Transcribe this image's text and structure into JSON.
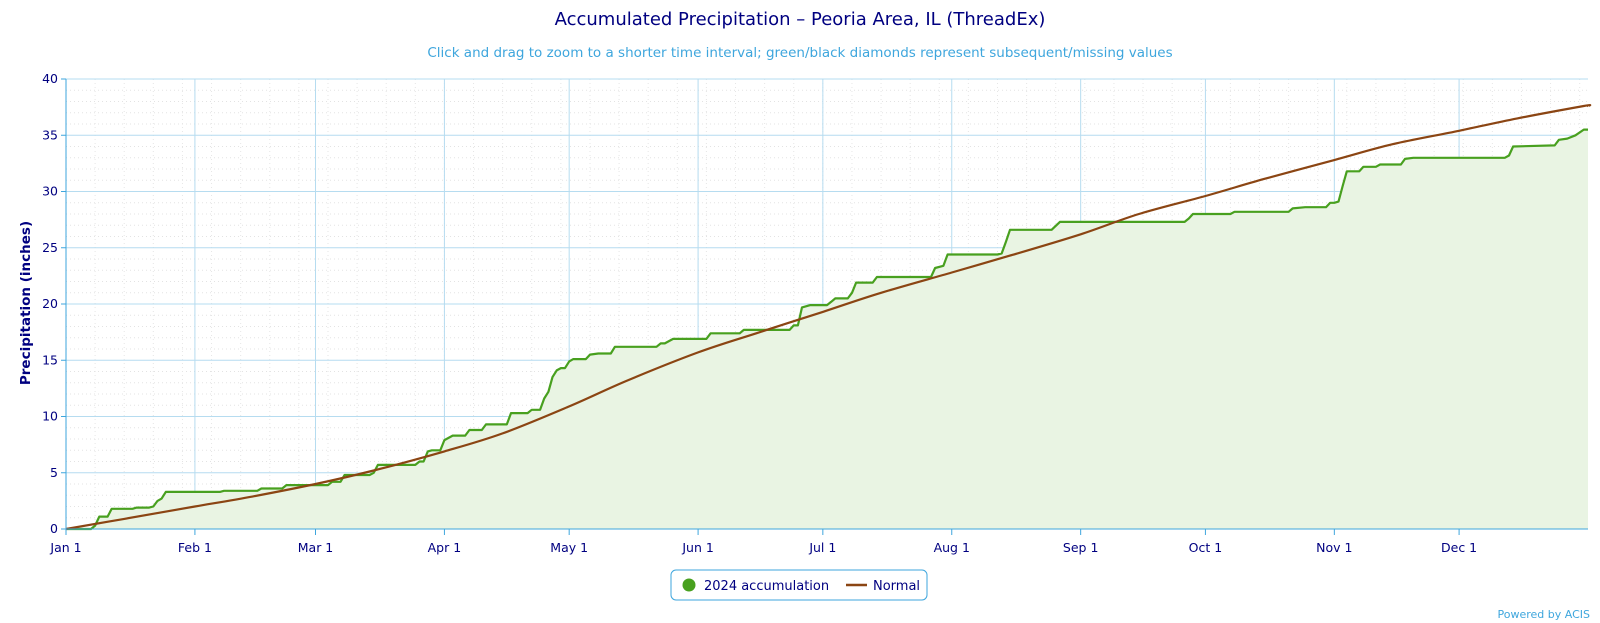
{
  "chart_data": {
    "type": "area",
    "title": "Accumulated Precipitation – Peoria Area, IL (ThreadEx)",
    "subtitle": "Click and drag to zoom to a shorter time interval; green/black diamonds represent subsequent/missing values",
    "ylabel": "Precipitation (inches)",
    "ylim": [
      0,
      40
    ],
    "yticks": [
      "0",
      "5",
      "10",
      "15",
      "20",
      "25",
      "30",
      "35",
      "40"
    ],
    "xlim": [
      "2024-01-01",
      "2024-12-31"
    ],
    "xticks": [
      {
        "date": "2024-01-01",
        "label": "Jan 1"
      },
      {
        "date": "2024-02-01",
        "label": "Feb 1"
      },
      {
        "date": "2024-03-01",
        "label": "Mar 1"
      },
      {
        "date": "2024-04-01",
        "label": "Apr 1"
      },
      {
        "date": "2024-05-01",
        "label": "May 1"
      },
      {
        "date": "2024-06-01",
        "label": "Jun 1"
      },
      {
        "date": "2024-07-01",
        "label": "Jul 1"
      },
      {
        "date": "2024-08-01",
        "label": "Aug 1"
      },
      {
        "date": "2024-09-01",
        "label": "Sep 1"
      },
      {
        "date": "2024-10-01",
        "label": "Oct 1"
      },
      {
        "date": "2024-11-01",
        "label": "Nov 1"
      },
      {
        "date": "2024-12-01",
        "label": "Dec 1"
      }
    ],
    "grid": true,
    "legend_position": "bottom-center",
    "series": [
      {
        "name": "2024 accumulation",
        "color": "#48a01f",
        "fill": "#e9f4e3",
        "points": [
          [
            "2024-01-01",
            0.0
          ],
          [
            "2024-01-07",
            0.0
          ],
          [
            "2024-01-08",
            0.3
          ],
          [
            "2024-01-09",
            1.1
          ],
          [
            "2024-01-11",
            1.1
          ],
          [
            "2024-01-12",
            1.8
          ],
          [
            "2024-01-17",
            1.8
          ],
          [
            "2024-01-18",
            1.9
          ],
          [
            "2024-01-21",
            1.9
          ],
          [
            "2024-01-22",
            2.0
          ],
          [
            "2024-01-23",
            2.5
          ],
          [
            "2024-01-24",
            2.7
          ],
          [
            "2024-01-25",
            3.3
          ],
          [
            "2024-02-07",
            3.3
          ],
          [
            "2024-02-08",
            3.4
          ],
          [
            "2024-02-16",
            3.4
          ],
          [
            "2024-02-17",
            3.6
          ],
          [
            "2024-02-22",
            3.6
          ],
          [
            "2024-02-23",
            3.9
          ],
          [
            "2024-03-04",
            3.9
          ],
          [
            "2024-03-05",
            4.2
          ],
          [
            "2024-03-07",
            4.2
          ],
          [
            "2024-03-08",
            4.8
          ],
          [
            "2024-03-14",
            4.8
          ],
          [
            "2024-03-15",
            5.0
          ],
          [
            "2024-03-16",
            5.7
          ],
          [
            "2024-03-25",
            5.7
          ],
          [
            "2024-03-26",
            6.0
          ],
          [
            "2024-03-27",
            6.0
          ],
          [
            "2024-03-28",
            6.9
          ],
          [
            "2024-03-29",
            7.0
          ],
          [
            "2024-03-31",
            7.0
          ],
          [
            "2024-04-01",
            7.9
          ],
          [
            "2024-04-03",
            8.3
          ],
          [
            "2024-04-06",
            8.3
          ],
          [
            "2024-04-07",
            8.8
          ],
          [
            "2024-04-10",
            8.8
          ],
          [
            "2024-04-11",
            9.3
          ],
          [
            "2024-04-16",
            9.3
          ],
          [
            "2024-04-17",
            10.3
          ],
          [
            "2024-04-21",
            10.3
          ],
          [
            "2024-04-22",
            10.6
          ],
          [
            "2024-04-24",
            10.6
          ],
          [
            "2024-04-25",
            11.6
          ],
          [
            "2024-04-26",
            12.2
          ],
          [
            "2024-04-27",
            13.5
          ],
          [
            "2024-04-28",
            14.1
          ],
          [
            "2024-04-29",
            14.3
          ],
          [
            "2024-04-30",
            14.3
          ],
          [
            "2024-05-01",
            14.9
          ],
          [
            "2024-05-02",
            15.1
          ],
          [
            "2024-05-05",
            15.1
          ],
          [
            "2024-05-06",
            15.5
          ],
          [
            "2024-05-08",
            15.6
          ],
          [
            "2024-05-11",
            15.6
          ],
          [
            "2024-05-12",
            16.2
          ],
          [
            "2024-05-22",
            16.2
          ],
          [
            "2024-05-23",
            16.5
          ],
          [
            "2024-05-24",
            16.5
          ],
          [
            "2024-05-26",
            16.9
          ],
          [
            "2024-06-03",
            16.9
          ],
          [
            "2024-06-04",
            17.4
          ],
          [
            "2024-06-11",
            17.4
          ],
          [
            "2024-06-12",
            17.7
          ],
          [
            "2024-06-23",
            17.7
          ],
          [
            "2024-06-24",
            18.1
          ],
          [
            "2024-06-25",
            18.1
          ],
          [
            "2024-06-26",
            19.7
          ],
          [
            "2024-06-28",
            19.9
          ],
          [
            "2024-07-02",
            19.9
          ],
          [
            "2024-07-03",
            20.2
          ],
          [
            "2024-07-04",
            20.5
          ],
          [
            "2024-07-07",
            20.5
          ],
          [
            "2024-07-08",
            21.0
          ],
          [
            "2024-07-09",
            21.9
          ],
          [
            "2024-07-13",
            21.9
          ],
          [
            "2024-07-14",
            22.4
          ],
          [
            "2024-07-27",
            22.4
          ],
          [
            "2024-07-28",
            23.2
          ],
          [
            "2024-07-30",
            23.4
          ],
          [
            "2024-07-31",
            24.4
          ],
          [
            "2024-08-12",
            24.4
          ],
          [
            "2024-08-13",
            24.5
          ],
          [
            "2024-08-14",
            25.5
          ],
          [
            "2024-08-15",
            26.6
          ],
          [
            "2024-08-25",
            26.6
          ],
          [
            "2024-08-27",
            27.3
          ],
          [
            "2024-09-26",
            27.3
          ],
          [
            "2024-09-27",
            27.6
          ],
          [
            "2024-09-28",
            28.0
          ],
          [
            "2024-10-07",
            28.0
          ],
          [
            "2024-10-08",
            28.2
          ],
          [
            "2024-10-21",
            28.2
          ],
          [
            "2024-10-22",
            28.5
          ],
          [
            "2024-10-25",
            28.6
          ],
          [
            "2024-10-30",
            28.6
          ],
          [
            "2024-10-31",
            29.0
          ],
          [
            "2024-11-01",
            29.0
          ],
          [
            "2024-11-02",
            29.1
          ],
          [
            "2024-11-03",
            30.5
          ],
          [
            "2024-11-04",
            31.8
          ],
          [
            "2024-11-07",
            31.8
          ],
          [
            "2024-11-08",
            32.2
          ],
          [
            "2024-11-11",
            32.2
          ],
          [
            "2024-11-12",
            32.4
          ],
          [
            "2024-11-17",
            32.4
          ],
          [
            "2024-11-18",
            32.9
          ],
          [
            "2024-11-20",
            33.0
          ],
          [
            "2024-12-12",
            33.0
          ],
          [
            "2024-12-13",
            33.2
          ],
          [
            "2024-12-14",
            34.0
          ],
          [
            "2024-12-24",
            34.1
          ],
          [
            "2024-12-25",
            34.6
          ],
          [
            "2024-12-27",
            34.7
          ],
          [
            "2024-12-29",
            35.0
          ],
          [
            "2024-12-31",
            35.5
          ]
        ]
      },
      {
        "name": "Normal",
        "color": "#8b4513",
        "points": [
          [
            "2024-01-01",
            0.0
          ],
          [
            "2024-01-15",
            0.9
          ],
          [
            "2024-02-01",
            2.0
          ],
          [
            "2024-02-15",
            2.9
          ],
          [
            "2024-03-01",
            4.0
          ],
          [
            "2024-03-15",
            5.2
          ],
          [
            "2024-04-01",
            6.9
          ],
          [
            "2024-04-15",
            8.5
          ],
          [
            "2024-05-01",
            10.9
          ],
          [
            "2024-05-15",
            13.2
          ],
          [
            "2024-06-01",
            15.7
          ],
          [
            "2024-06-15",
            17.4
          ],
          [
            "2024-07-01",
            19.3
          ],
          [
            "2024-07-15",
            21.0
          ],
          [
            "2024-08-01",
            22.8
          ],
          [
            "2024-08-15",
            24.3
          ],
          [
            "2024-09-01",
            26.2
          ],
          [
            "2024-09-15",
            28.0
          ],
          [
            "2024-10-01",
            29.6
          ],
          [
            "2024-10-15",
            31.1
          ],
          [
            "2024-11-01",
            32.8
          ],
          [
            "2024-11-15",
            34.2
          ],
          [
            "2024-12-01",
            35.4
          ],
          [
            "2024-12-15",
            36.5
          ],
          [
            "2024-12-31",
            37.6
          ]
        ]
      }
    ]
  },
  "legend": {
    "items": [
      {
        "label": "2024 accumulation",
        "marker": "circle",
        "color": "#48a01f"
      },
      {
        "label": "Normal",
        "marker": "line",
        "color": "#8b4513"
      }
    ]
  },
  "credit": "Powered by ACIS"
}
